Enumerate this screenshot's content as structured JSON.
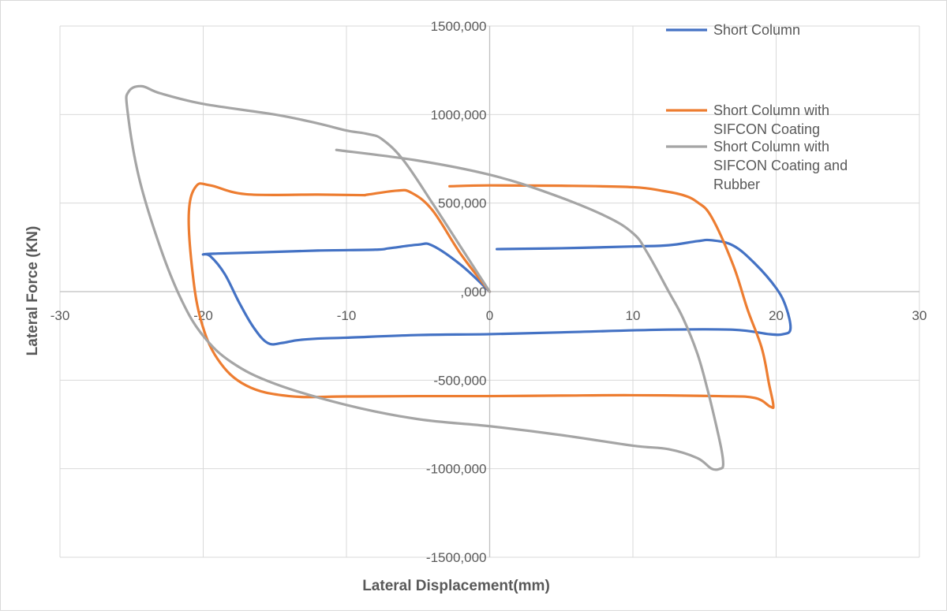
{
  "chart_data": {
    "type": "line",
    "xlabel": "Lateral Displacement(mm)",
    "ylabel": "Lateral Force (KN)",
    "xlim": [
      -30,
      30
    ],
    "ylim": [
      -1500000,
      1500000
    ],
    "grid": true,
    "legend": "top-right",
    "x_ticks": [
      {
        "value": -30,
        "label": "-30"
      },
      {
        "value": -20,
        "label": "-20"
      },
      {
        "value": -10,
        "label": "-10"
      },
      {
        "value": 0,
        "label": "0"
      },
      {
        "value": 10,
        "label": "10"
      },
      {
        "value": 20,
        "label": "20"
      },
      {
        "value": 30,
        "label": "30"
      }
    ],
    "y_ticks": [
      {
        "value": 1500000,
        "label": "1500,000"
      },
      {
        "value": 1000000,
        "label": "1000,000"
      },
      {
        "value": 500000,
        "label": "500,000"
      },
      {
        "value": 0,
        "label": ",000"
      },
      {
        "value": -500000,
        "label": "-500,000"
      },
      {
        "value": -1000000,
        "label": "-1000,000"
      },
      {
        "value": -1500000,
        "label": "-1500,000"
      }
    ],
    "series": [
      {
        "name": "Short Column",
        "color": "#4472c4",
        "x": [
          0.5,
          5,
          10,
          12.5,
          14.5,
          15.5,
          17,
          18.5,
          20,
          20.7,
          21,
          20.5,
          19.5,
          17,
          12,
          5,
          0,
          -5,
          -10,
          -12,
          -13.5,
          -14.5,
          -15.5,
          -16.5,
          -17.5,
          -18.5,
          -19.5,
          -20,
          -19,
          -16,
          -12,
          -8,
          -7,
          -5,
          -4,
          -2,
          0
        ],
        "y": [
          240000,
          245000,
          255000,
          262000,
          285000,
          290000,
          260000,
          160000,
          20000,
          -90000,
          -210000,
          -240000,
          -240000,
          -215000,
          -215000,
          -230000,
          -240000,
          -245000,
          -260000,
          -265000,
          -275000,
          -290000,
          -290000,
          -200000,
          -60000,
          100000,
          200000,
          210000,
          215000,
          222000,
          232000,
          237000,
          245000,
          265000,
          260000,
          150000,
          0
        ]
      },
      {
        "name": "Short Column with SIFCON Coating",
        "color": "#ed7d31",
        "x": [
          -2.8,
          0,
          5,
          10,
          12,
          13.5,
          14.5,
          15.5,
          17,
          18,
          19,
          19.5,
          19.8,
          19.6,
          18.5,
          16,
          10,
          5,
          0,
          -5,
          -10,
          -14,
          -17,
          -19,
          -20.2,
          -20.8,
          -21,
          -20.5,
          -19.5,
          -17,
          -12,
          -9,
          -8.5,
          -6.5,
          -5.5,
          -4,
          -2,
          0
        ],
        "y": [
          595000,
          600000,
          598000,
          590000,
          570000,
          545000,
          505000,
          420000,
          150000,
          -100000,
          -320000,
          -520000,
          -640000,
          -650000,
          -600000,
          -590000,
          -585000,
          -587000,
          -590000,
          -590000,
          -592000,
          -590000,
          -530000,
          -380000,
          -150000,
          150000,
          450000,
          595000,
          600000,
          550000,
          548000,
          545000,
          548000,
          570000,
          560000,
          460000,
          210000,
          0
        ]
      },
      {
        "name": "Short Column with SIFCON Coating and Rubber",
        "color": "#a5a5a5",
        "x": [
          -10.7,
          -5,
          0,
          4,
          8,
          10,
          11,
          12.5,
          13.5,
          14.5,
          15.2,
          15.8,
          16.2,
          16.3,
          16.1,
          15.5,
          14.5,
          12.5,
          10,
          5,
          0,
          -5,
          -10,
          -15,
          -18,
          -20,
          -21.5,
          -23,
          -24.5,
          -25.3,
          -25.2,
          -24.3,
          -23,
          -20,
          -15,
          -12,
          -10,
          -8.5,
          -7.5,
          -6,
          -4,
          -2,
          0
        ],
        "y": [
          800000,
          740000,
          660000,
          560000,
          430000,
          330000,
          220000,
          0,
          -150000,
          -350000,
          -550000,
          -750000,
          -900000,
          -980000,
          -1000000,
          -1000000,
          -940000,
          -890000,
          -870000,
          -810000,
          -760000,
          -720000,
          -640000,
          -520000,
          -400000,
          -250000,
          -50000,
          250000,
          650000,
          1030000,
          1130000,
          1160000,
          1120000,
          1060000,
          1000000,
          950000,
          910000,
          890000,
          860000,
          740000,
          500000,
          250000,
          0
        ]
      }
    ]
  }
}
